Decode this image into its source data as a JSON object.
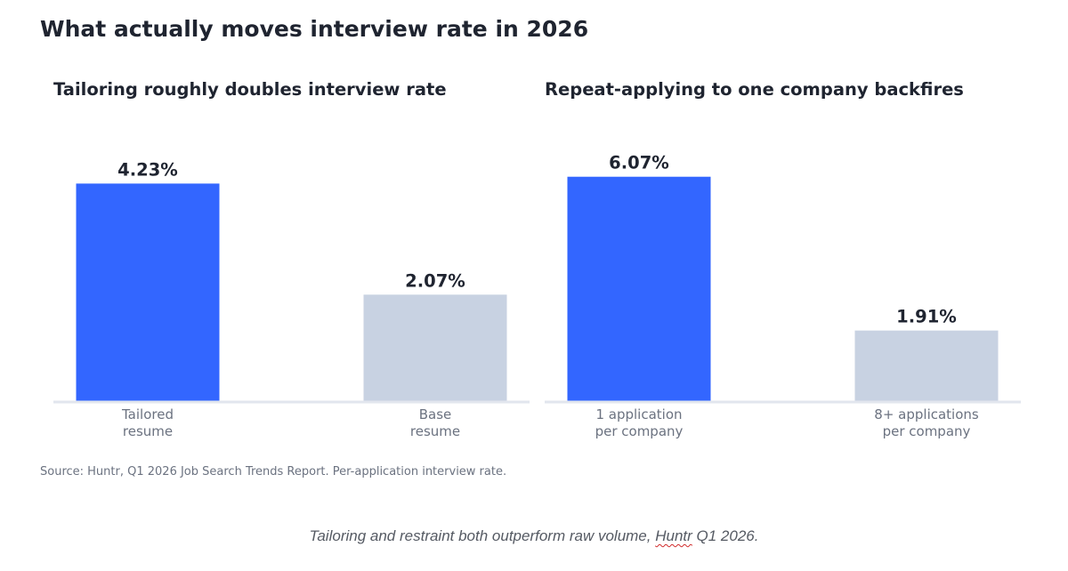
{
  "figure": {
    "title": "What actually moves interview rate in 2026",
    "source": "Source: Huntr, Q1 2026 Job Search Trends Report. Per-application interview rate."
  },
  "caption": {
    "before": "Tailoring and restraint both outperform raw volume, ",
    "misspelled": "Huntr",
    "after": " Q1 2026."
  },
  "colors": {
    "primary": "#3366ff",
    "secondary": "#c8d2e2",
    "baseline": "#e2e6ee",
    "title": "#1f2430",
    "tick": "#6b7280"
  },
  "chart_data": [
    {
      "type": "bar",
      "title": "Tailoring roughly doubles interview rate",
      "categories": [
        [
          "Tailored",
          "resume"
        ],
        [
          "Base",
          "resume"
        ]
      ],
      "values": [
        4.23,
        2.07
      ],
      "value_labels": [
        "4.23%",
        "2.07%"
      ],
      "bar_colors": [
        "#3366ff",
        "#c8d2e2"
      ],
      "xlabel": "",
      "ylabel": "",
      "ylim": [
        0,
        4.6
      ],
      "grid": false,
      "legend": "none"
    },
    {
      "type": "bar",
      "title": "Repeat-applying to one company backfires",
      "categories": [
        [
          "1 application",
          "per company"
        ],
        [
          "8+ applications",
          "per company"
        ]
      ],
      "values": [
        6.07,
        1.91
      ],
      "value_labels": [
        "6.07%",
        "1.91%"
      ],
      "bar_colors": [
        "#3366ff",
        "#c8d2e2"
      ],
      "xlabel": "",
      "ylabel": "",
      "ylim": [
        0,
        6.4
      ],
      "grid": false,
      "legend": "none"
    }
  ]
}
